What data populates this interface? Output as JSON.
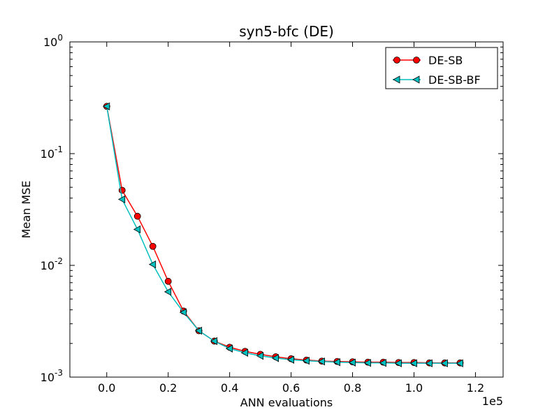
{
  "chart_data": {
    "type": "line",
    "title": "syn5-bfc (DE)",
    "xlabel": "ANN evaluations",
    "ylabel": "Mean MSE",
    "x_multiplier_label": "1e5",
    "xlim": [
      -0.12,
      1.29
    ],
    "ylim": [
      0.001,
      1
    ],
    "yscale": "log",
    "x_ticks": [
      0.0,
      0.2,
      0.4,
      0.6,
      0.8,
      1.0,
      1.2
    ],
    "x_tick_labels": [
      "0.0",
      "0.2",
      "0.4",
      "0.6",
      "0.8",
      "1.0",
      "1.2"
    ],
    "y_ticks": [
      {
        "value": 0.001,
        "base": "10",
        "exp": "-3"
      },
      {
        "value": 0.01,
        "base": "10",
        "exp": "-2"
      },
      {
        "value": 0.1,
        "base": "10",
        "exp": "-1"
      },
      {
        "value": 1,
        "base": "10",
        "exp": "0"
      }
    ],
    "grid": false,
    "legend_position": "top-right",
    "series": [
      {
        "name": "DE-SB",
        "color": "#ff0000",
        "marker": "circle",
        "x": [
          0.0,
          0.05,
          0.1,
          0.15,
          0.2,
          0.25,
          0.3,
          0.35,
          0.4,
          0.45,
          0.5,
          0.55,
          0.6,
          0.65,
          0.7,
          0.75,
          0.8,
          0.85,
          0.9,
          0.95,
          1.0,
          1.05,
          1.1,
          1.15
        ],
        "y": [
          0.265,
          0.047,
          0.0275,
          0.0148,
          0.0072,
          0.0039,
          0.0026,
          0.0021,
          0.00185,
          0.0017,
          0.0016,
          0.00152,
          0.00146,
          0.00142,
          0.00139,
          0.00138,
          0.00137,
          0.00136,
          0.00136,
          0.00135,
          0.00135,
          0.00134,
          0.00134,
          0.00134
        ]
      },
      {
        "name": "DE-SB-BF",
        "color": "#00bfbf",
        "marker": "triangle-left",
        "x": [
          0.0,
          0.05,
          0.1,
          0.15,
          0.2,
          0.25,
          0.3,
          0.35,
          0.4,
          0.45,
          0.5,
          0.55,
          0.6,
          0.65,
          0.7,
          0.75,
          0.8,
          0.85,
          0.9,
          0.95,
          1.0,
          1.05,
          1.1,
          1.15
        ],
        "y": [
          0.265,
          0.039,
          0.021,
          0.0102,
          0.0058,
          0.0038,
          0.0026,
          0.0021,
          0.0018,
          0.00165,
          0.00155,
          0.00148,
          0.00143,
          0.0014,
          0.00138,
          0.00136,
          0.00135,
          0.00134,
          0.00134,
          0.00133,
          0.00133,
          0.00133,
          0.00133,
          0.00133
        ]
      }
    ]
  }
}
